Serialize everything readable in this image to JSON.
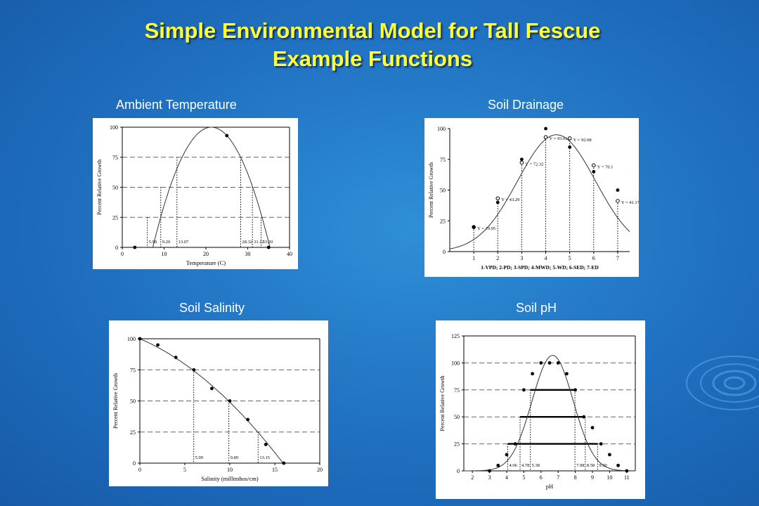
{
  "slide": {
    "title_line1": "Simple Environmental Model for Tall Fescue",
    "title_line2": "Example Functions"
  },
  "panels": {
    "temp_label": "Ambient Temperature",
    "drain_label": "Soil Drainage",
    "sal_label": "Soil Salinity",
    "ph_label": "Soil pH"
  },
  "colors": {
    "title": "#ffff33",
    "background": "#1f6fc0"
  },
  "chart_data": [
    {
      "id": "temp",
      "type": "line",
      "xlabel": "Temperature (C)",
      "ylabel": "Percent Relative Growth",
      "xlim": [
        0,
        40
      ],
      "ylim": [
        0,
        100
      ],
      "xticks": [
        0,
        10,
        20,
        30,
        40
      ],
      "yticks": [
        0,
        25,
        50,
        75,
        100
      ],
      "xtick_labels": [
        "0",
        "10",
        "20",
        "30",
        "40"
      ],
      "ytick_labels": [
        "0",
        "25",
        "50",
        "75",
        "100"
      ],
      "grid": "dashed horizontal",
      "curve": {
        "kind": "parabola",
        "vertex_x": 21.3,
        "vertex_y": 100,
        "half_width": 14
      },
      "points": [
        {
          "x": 3,
          "y": 0
        },
        {
          "x": 25,
          "y": 93
        },
        {
          "x": 35,
          "y": 0
        }
      ],
      "drop_lines": [
        {
          "x": 5.98,
          "y": 25
        },
        {
          "x": 9.2,
          "y": 50
        },
        {
          "x": 13.07,
          "y": 75
        },
        {
          "x": 28.32,
          "y": 75
        },
        {
          "x": 31.12,
          "y": 50
        },
        {
          "x": 33.2,
          "y": 25
        }
      ],
      "annotations": [
        {
          "text": "5.98",
          "x": 5.98
        },
        {
          "text": "9.20",
          "x": 9.2
        },
        {
          "text": "13.07",
          "x": 13.07
        },
        {
          "text": "28.32",
          "x": 28.32
        },
        {
          "text": "31.12",
          "x": 31.12
        },
        {
          "text": "33.20",
          "x": 33.2
        }
      ]
    },
    {
      "id": "drain",
      "type": "line",
      "xlabel": "1-VPD; 2-PD; 3-SPD; 4-MWD; 5-WD; 6-SED; 7-ED",
      "ylabel": "Percent Relative Growth",
      "xlim": [
        0,
        7.5
      ],
      "ylim": [
        0,
        100
      ],
      "xticks": [
        1,
        2,
        3,
        4,
        5,
        6,
        7
      ],
      "yticks": [
        0,
        25,
        50,
        75,
        100
      ],
      "xtick_labels": [
        "1",
        "2",
        "3",
        "4",
        "5",
        "6",
        "7"
      ],
      "ytick_labels": [
        "0",
        "25",
        "50",
        "75",
        "100"
      ],
      "grid": "none",
      "curve": {
        "kind": "gaussian",
        "mu": 4.45,
        "sigma": 1.62,
        "peak": 95
      },
      "points": [
        {
          "x": 1,
          "y": 20
        },
        {
          "x": 2,
          "y": 40
        },
        {
          "x": 3,
          "y": 75
        },
        {
          "x": 4,
          "y": 100
        },
        {
          "x": 5,
          "y": 85
        },
        {
          "x": 6,
          "y": 65
        },
        {
          "x": 7,
          "y": 50
        }
      ],
      "fitted": [
        {
          "x": 1,
          "y": 19.95,
          "text": "Y = 19.95"
        },
        {
          "x": 2,
          "y": 43.29,
          "text": "Y = 43.29"
        },
        {
          "x": 3,
          "y": 72.32,
          "text": "Y = 72.32"
        },
        {
          "x": 4,
          "y": 93.01,
          "text": "Y = 93.01"
        },
        {
          "x": 5,
          "y": 92.08,
          "text": "Y = 92.08"
        },
        {
          "x": 6,
          "y": 70.1,
          "text": "Y = 70.1"
        },
        {
          "x": 7,
          "y": 41.17,
          "text": "Y = 41.17"
        }
      ]
    },
    {
      "id": "sal",
      "type": "line",
      "xlabel": "Salinity (millimhos/cm)",
      "ylabel": "Percent Relative Growth",
      "xlim": [
        0,
        20
      ],
      "ylim": [
        0,
        100
      ],
      "xticks": [
        0,
        5,
        10,
        15,
        20
      ],
      "yticks": [
        0,
        25,
        50,
        75,
        100
      ],
      "xtick_labels": [
        "0",
        "5",
        "10",
        "15",
        "20"
      ],
      "ytick_labels": [
        "0",
        "25",
        "50",
        "75",
        "100"
      ],
      "grid": "dashed horizontal",
      "curve": {
        "kind": "quadratic",
        "a": -0.2,
        "b": -3.1,
        "c": 100,
        "x_end": 16
      },
      "points": [
        {
          "x": 0,
          "y": 100
        },
        {
          "x": 2,
          "y": 95
        },
        {
          "x": 4,
          "y": 85
        },
        {
          "x": 6,
          "y": 75
        },
        {
          "x": 8,
          "y": 60
        },
        {
          "x": 10,
          "y": 50
        },
        {
          "x": 12,
          "y": 35
        },
        {
          "x": 14,
          "y": 15
        },
        {
          "x": 16,
          "y": 0
        }
      ],
      "drop_lines": [
        {
          "x": 5.99,
          "y": 75
        },
        {
          "x": 9.89,
          "y": 50
        },
        {
          "x": 13.15,
          "y": 25
        }
      ],
      "annotations": [
        {
          "text": "5.99",
          "x": 5.99
        },
        {
          "text": "9.89",
          "x": 9.89
        },
        {
          "text": "13.15",
          "x": 13.15
        }
      ]
    },
    {
      "id": "ph",
      "type": "line",
      "xlabel": "pH",
      "ylabel": "Percent Relative Growth",
      "xlim": [
        1.5,
        11.5
      ],
      "ylim": [
        0,
        125
      ],
      "xticks": [
        2,
        3,
        4,
        5,
        6,
        7,
        8,
        9,
        10,
        11
      ],
      "yticks": [
        0,
        25,
        50,
        75,
        100,
        125
      ],
      "xtick_labels": [
        "2",
        "3",
        "4",
        "5",
        "6",
        "7",
        "8",
        "9",
        "10",
        "11"
      ],
      "ytick_labels": [
        "0",
        "25",
        "50",
        "75",
        "100",
        "125"
      ],
      "grid": "dashed horizontal",
      "curve": {
        "kind": "gaussian",
        "mu": 6.68,
        "sigma": 1.2,
        "peak": 107
      },
      "points": [
        {
          "x": 3,
          "y": 0
        },
        {
          "x": 3.5,
          "y": 5
        },
        {
          "x": 4,
          "y": 15
        },
        {
          "x": 4.5,
          "y": 25
        },
        {
          "x": 5,
          "y": 75
        },
        {
          "x": 5.5,
          "y": 90
        },
        {
          "x": 6,
          "y": 100
        },
        {
          "x": 6.5,
          "y": 100
        },
        {
          "x": 7,
          "y": 100
        },
        {
          "x": 7.5,
          "y": 90
        },
        {
          "x": 8,
          "y": 75
        },
        {
          "x": 8.5,
          "y": 50
        },
        {
          "x": 9,
          "y": 40
        },
        {
          "x": 9.5,
          "y": 25
        },
        {
          "x": 10,
          "y": 15
        },
        {
          "x": 10.5,
          "y": 5
        },
        {
          "x": 11,
          "y": 0
        }
      ],
      "bars": [
        {
          "x1": 4.06,
          "x2": 9.3,
          "y": 25
        },
        {
          "x1": 4.78,
          "x2": 8.58,
          "y": 50
        },
        {
          "x1": 5.38,
          "x2": 7.98,
          "y": 75
        }
      ],
      "annotations": [
        {
          "text": "4.06",
          "x": 4.06
        },
        {
          "text": "4.78",
          "x": 4.78
        },
        {
          "text": "5.38",
          "x": 5.38
        },
        {
          "text": "7.98",
          "x": 7.98
        },
        {
          "text": "8.58",
          "x": 8.58
        },
        {
          "text": "9.30",
          "x": 9.3
        }
      ]
    }
  ]
}
